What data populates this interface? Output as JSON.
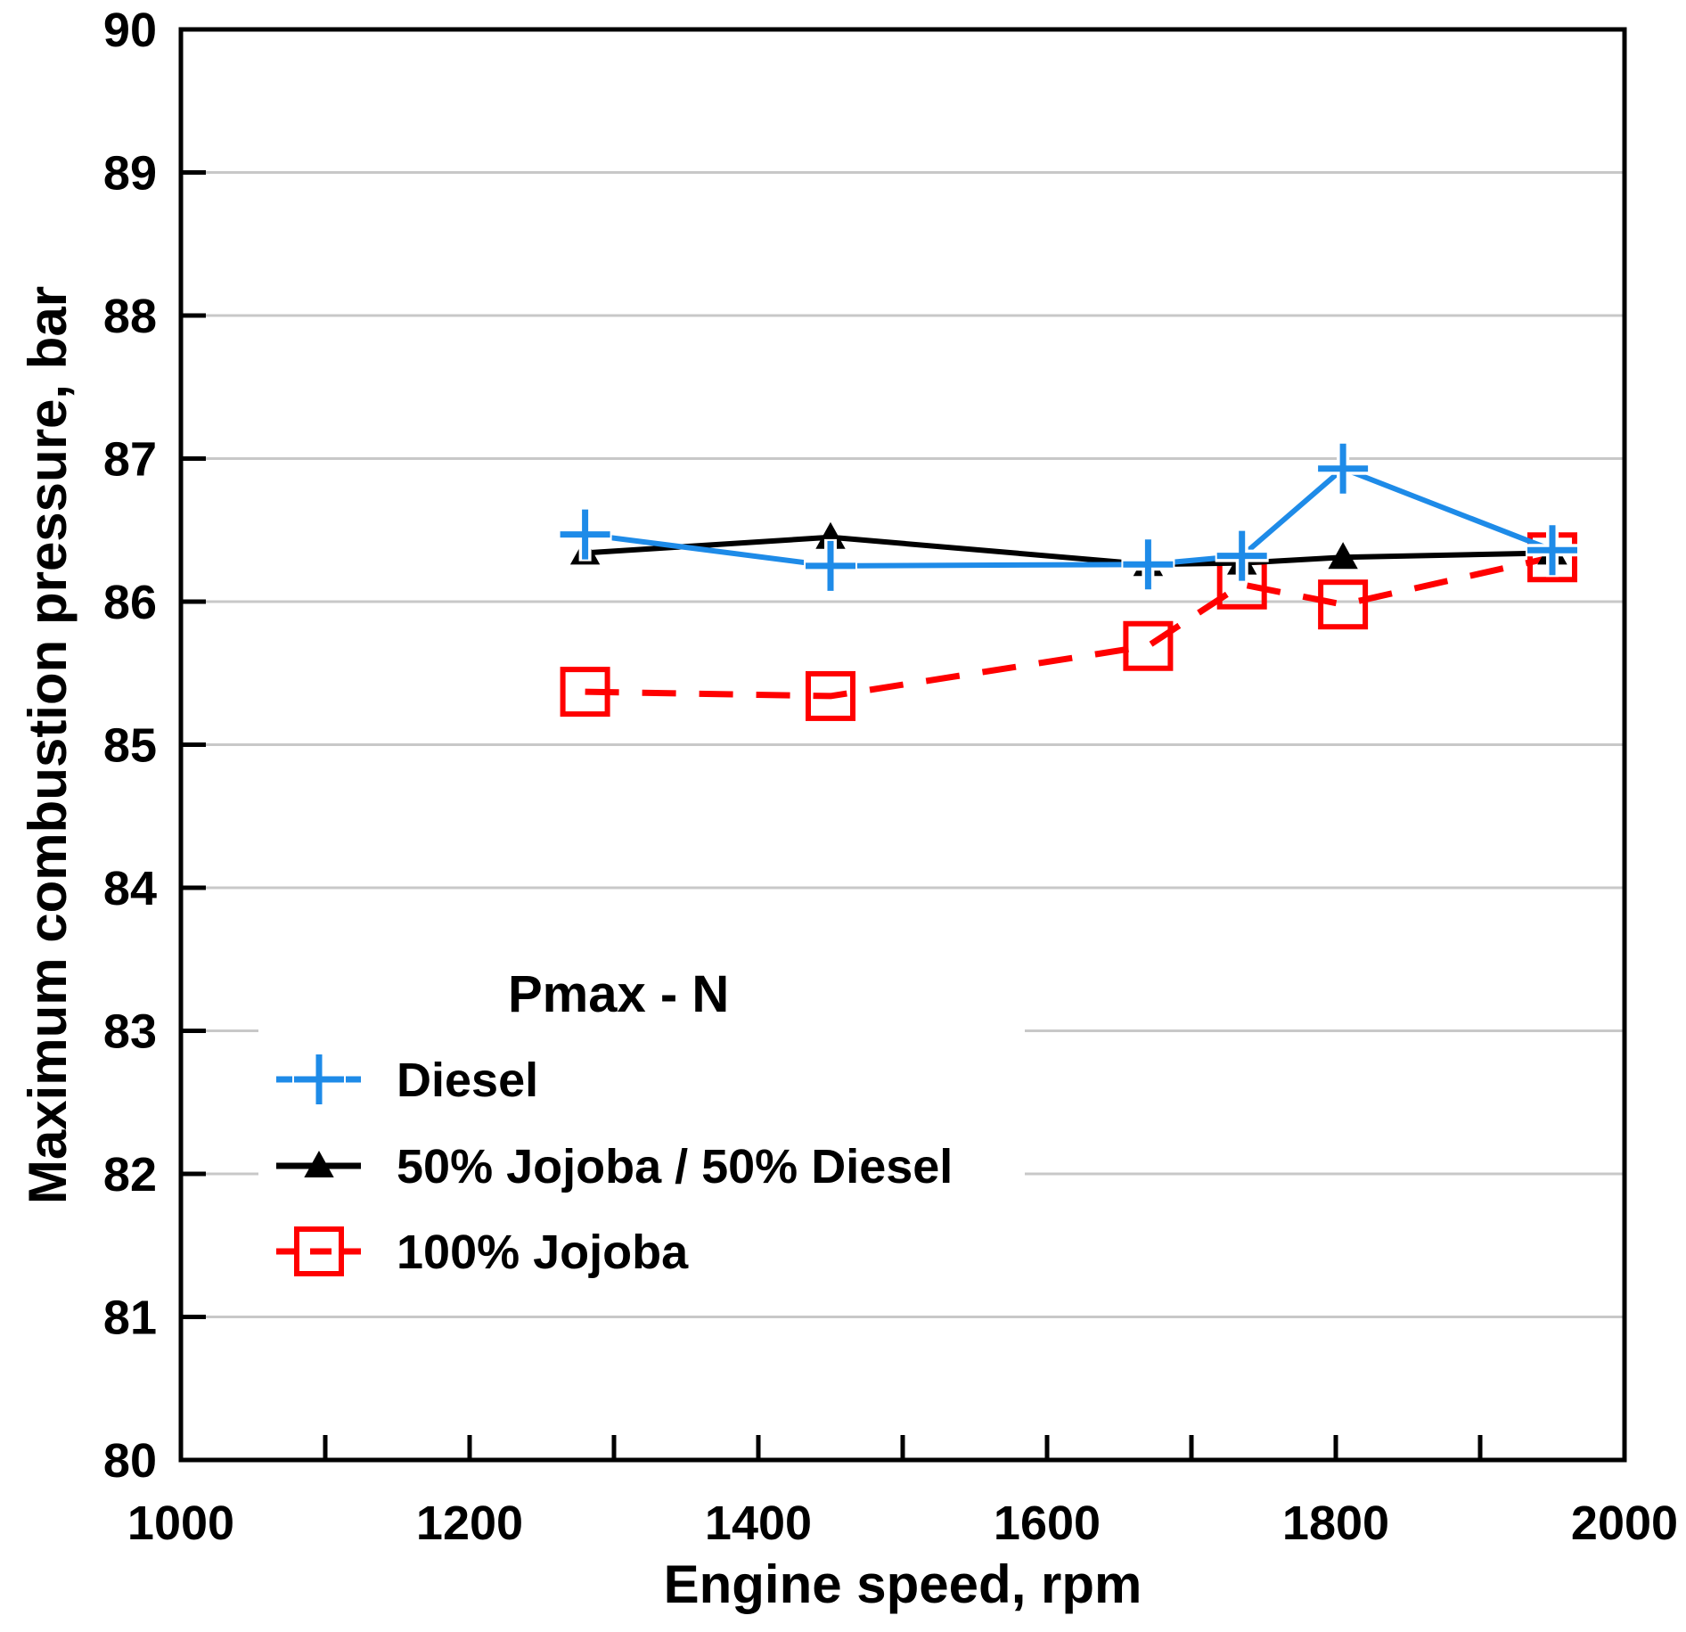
{
  "chart_data": {
    "type": "line",
    "title": "",
    "xlabel": "Engine speed, rpm",
    "ylabel": "Maximum combustion pressure, bar",
    "xlim": [
      1000,
      2000
    ],
    "ylim": [
      80,
      90
    ],
    "x_major_ticks": [
      1000,
      1200,
      1400,
      1600,
      1800,
      2000
    ],
    "x_minor_ticks": [
      1100,
      1300,
      1500,
      1700,
      1900
    ],
    "y_ticks": [
      80,
      81,
      82,
      83,
      84,
      85,
      86,
      87,
      88,
      89,
      90
    ],
    "grid": "horizontal",
    "legend": {
      "title": "Pmax - N",
      "placement": "lower-left"
    },
    "series": [
      {
        "name": "Diesel",
        "color": "#1e8be8",
        "line_style": "solid",
        "marker": "plus",
        "x": [
          1280,
          1450,
          1670,
          1735,
          1805,
          1950
        ],
        "y": [
          86.47,
          86.25,
          86.26,
          86.32,
          86.93,
          86.36
        ]
      },
      {
        "name": "50% Jojoba / 50% Diesel",
        "color": "#000000",
        "line_style": "solid",
        "marker": "triangle",
        "x": [
          1280,
          1450,
          1670,
          1735,
          1805,
          1950
        ],
        "y": [
          86.34,
          86.45,
          86.26,
          86.27,
          86.31,
          86.34
        ]
      },
      {
        "name": "100% Jojoba",
        "color": "#ff0000",
        "line_style": "dashed",
        "marker": "square",
        "x": [
          1280,
          1450,
          1670,
          1735,
          1805,
          1950
        ],
        "y": [
          85.37,
          85.34,
          85.69,
          86.12,
          85.98,
          86.31
        ]
      }
    ]
  }
}
